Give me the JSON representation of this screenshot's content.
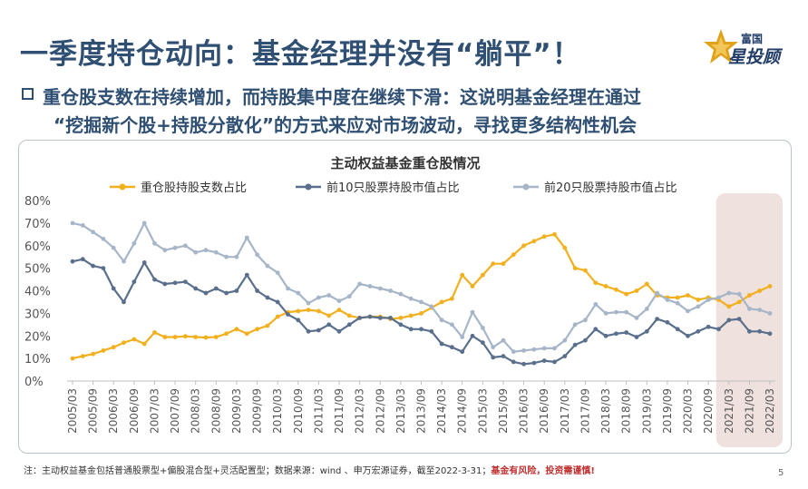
{
  "header": {
    "title": "一季度持仓动向：基金经理并没有“躺平”！",
    "logo_top": "富国",
    "logo_main": "星投顾"
  },
  "subtitle": {
    "line1": "重仓股支数在持续增加，而持股集中度在继续下滑：这说明基金经理在通过",
    "line2": "“挖掘新个股+持股分散化”的方式来应对市场波动，寻找更多结构性机会"
  },
  "footer": {
    "note": "注：主动权益基金包括普通股票型+偏股混合型+灵活配置型；数据来源：wind 、申万宏源证券，截至2022-3-31；",
    "risk": "基金有风险，投资需谨慎!",
    "page_number": "5"
  },
  "chart_data": {
    "type": "line",
    "title": "主动权益基金重仓股情况",
    "xlabel": "",
    "ylabel": "",
    "ylim": [
      0,
      80
    ],
    "yticks": [
      "0%",
      "10%",
      "20%",
      "30%",
      "40%",
      "50%",
      "60%",
      "70%",
      "80%"
    ],
    "legend_position": "top",
    "highlight_period": [
      "2021/03",
      "2022/03"
    ],
    "x": [
      "2005/03",
      "2005/06",
      "2005/09",
      "2005/12",
      "2006/03",
      "2006/06",
      "2006/09",
      "2006/12",
      "2007/03",
      "2007/06",
      "2007/09",
      "2007/12",
      "2008/03",
      "2008/06",
      "2008/09",
      "2008/12",
      "2009/03",
      "2009/06",
      "2009/09",
      "2009/12",
      "2010/03",
      "2010/06",
      "2010/09",
      "2010/12",
      "2011/03",
      "2011/06",
      "2011/09",
      "2011/12",
      "2012/03",
      "2012/06",
      "2012/09",
      "2012/12",
      "2013/03",
      "2013/06",
      "2013/09",
      "2013/12",
      "2014/03",
      "2014/06",
      "2014/09",
      "2014/12",
      "2015/03",
      "2015/06",
      "2015/09",
      "2015/12",
      "2016/03",
      "2016/06",
      "2016/09",
      "2016/12",
      "2017/03",
      "2017/06",
      "2017/09",
      "2017/12",
      "2018/03",
      "2018/06",
      "2018/09",
      "2018/12",
      "2019/03",
      "2019/06",
      "2019/09",
      "2019/12",
      "2020/03",
      "2020/06",
      "2020/09",
      "2020/12",
      "2021/03",
      "2021/06",
      "2021/09",
      "2021/12",
      "2022/03"
    ],
    "x_tick_labels": [
      "2005/03",
      "2005/09",
      "2006/03",
      "2006/09",
      "2007/03",
      "2007/09",
      "2008/03",
      "2008/09",
      "2009/03",
      "2009/09",
      "2010/03",
      "2010/09",
      "2011/03",
      "2011/09",
      "2012/03",
      "2012/09",
      "2013/03",
      "2013/09",
      "2014/03",
      "2014/09",
      "2015/03",
      "2015/09",
      "2016/03",
      "2016/09",
      "2017/03",
      "2017/09",
      "2018/03",
      "2018/09",
      "2019/03",
      "2019/09",
      "2020/03",
      "2020/09",
      "2021/03",
      "2021/09",
      "2022/03"
    ],
    "series": [
      {
        "name": "重仓股持股支数占比",
        "color": "#f2b01e",
        "values": [
          10,
          11,
          12,
          13.5,
          15,
          17,
          18.5,
          16.5,
          21.5,
          19.5,
          19.5,
          19.8,
          19.5,
          19.3,
          19.5,
          21,
          23,
          21,
          23,
          24.5,
          28.5,
          30.5,
          31,
          31.5,
          31,
          29,
          31.5,
          29,
          28,
          28.5,
          28.5,
          27.5,
          28,
          29,
          30,
          32.5,
          35,
          36.5,
          47,
          42,
          47,
          52,
          52,
          56,
          60,
          62,
          64,
          65,
          59,
          50,
          49,
          43.5,
          42,
          40.5,
          38.5,
          40,
          43,
          38,
          37,
          37,
          38,
          36,
          37,
          36,
          33,
          35,
          38,
          40,
          42
        ]
      },
      {
        "name": "前10只股票持股市值占比",
        "color": "#5a6f8c",
        "values": [
          53,
          54,
          51,
          50,
          41,
          35,
          44,
          52.5,
          45,
          43,
          43.5,
          44,
          41,
          39,
          41,
          39,
          40,
          47,
          40,
          37,
          35,
          29.5,
          27,
          22,
          22.5,
          25,
          22,
          25,
          28,
          28.5,
          28,
          28,
          25,
          23,
          23,
          22,
          16.5,
          15,
          13,
          20,
          17,
          10.5,
          11,
          8.5,
          7.5,
          8,
          9,
          8.5,
          11,
          16,
          18,
          23,
          20,
          21,
          21.5,
          19.5,
          22,
          27.5,
          26,
          23,
          20,
          22,
          24,
          23,
          27,
          27.5,
          22,
          22,
          21
        ]
      },
      {
        "name": "前20只股票持股市值占比",
        "color": "#a6b6c8",
        "values": [
          70,
          69,
          66,
          63,
          59,
          53,
          61,
          70,
          61,
          58,
          59,
          60,
          57,
          58,
          57,
          55,
          55,
          63.5,
          56,
          51,
          48,
          41,
          39,
          34.5,
          37,
          38,
          35.5,
          37.5,
          43,
          42,
          41,
          40,
          38.5,
          36.5,
          35,
          33,
          27,
          25,
          19.5,
          30.5,
          23.5,
          15,
          18,
          13,
          13.5,
          14,
          14.5,
          14.5,
          18,
          25,
          27,
          34,
          30,
          30.5,
          30.5,
          28,
          32,
          39,
          36,
          34.5,
          31,
          33,
          36,
          37,
          39,
          38.5,
          32,
          31.5,
          30
        ]
      }
    ]
  }
}
